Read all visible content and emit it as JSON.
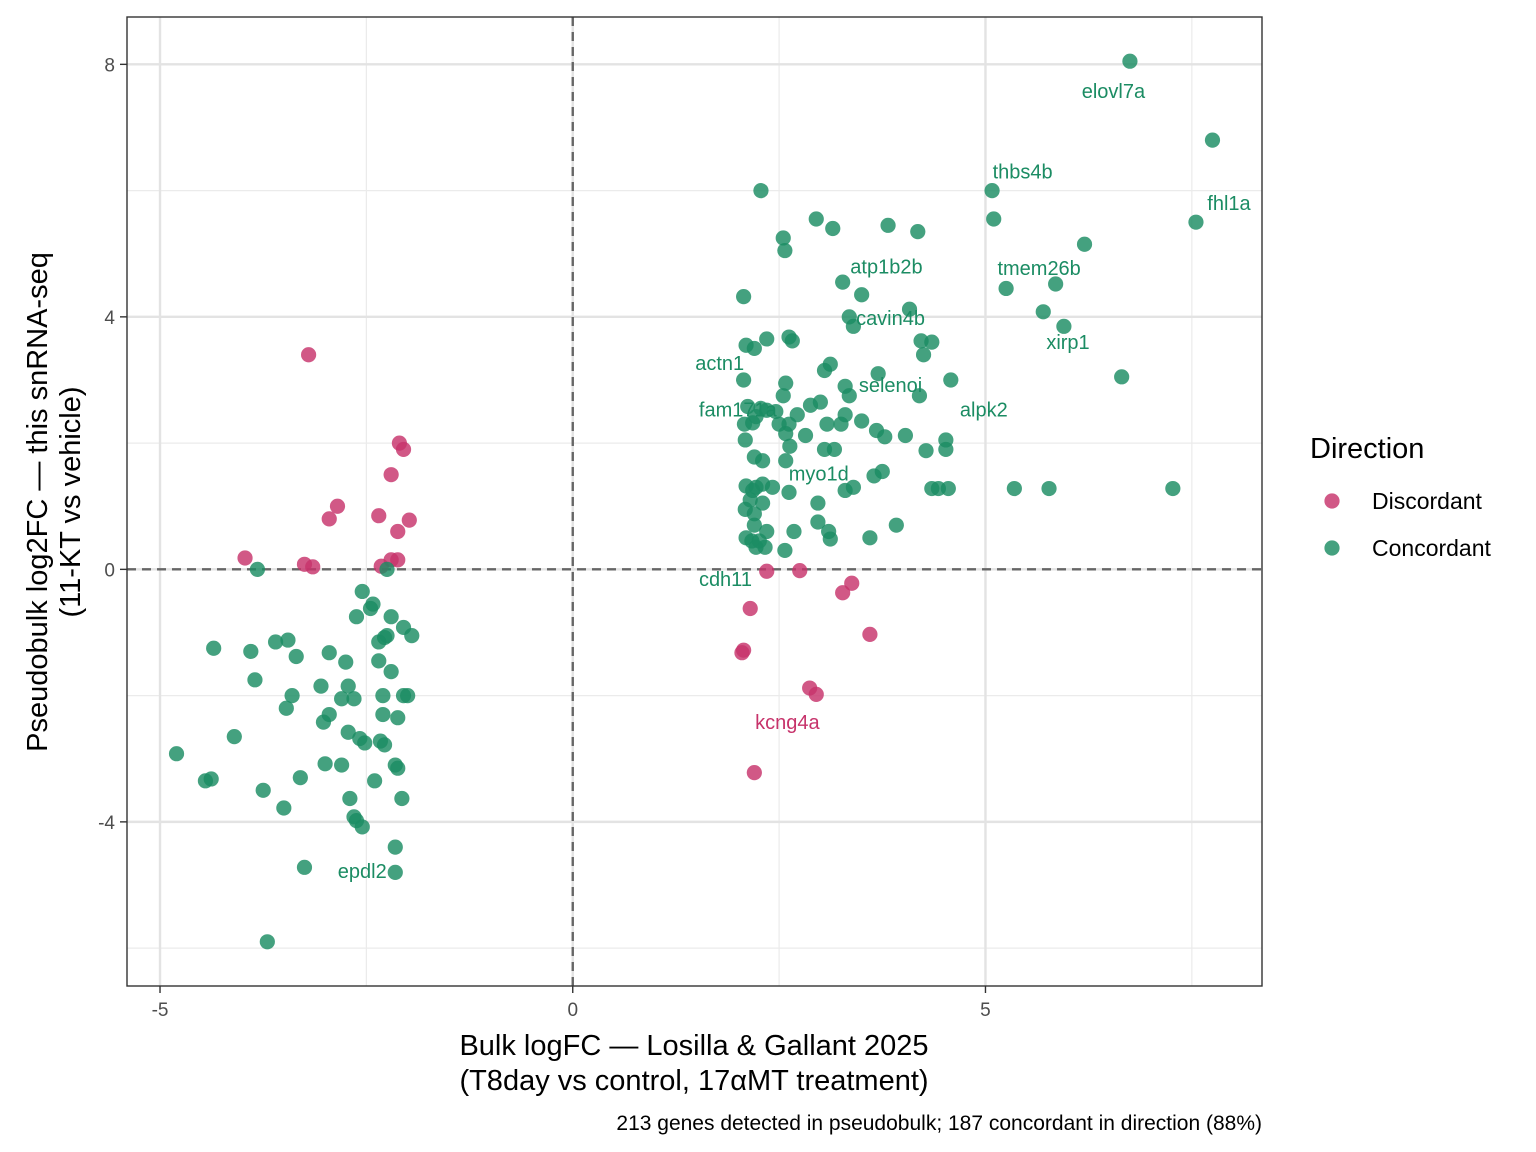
{
  "chart_data": {
    "type": "scatter",
    "title": "",
    "xlabel_lines": [
      "Bulk logFC — Losilla & Gallant 2025",
      "(T8day vs control, 17αMT treatment)"
    ],
    "ylabel_lines": [
      "Pseudobulk log2FC — this snRNA-seq",
      "(11-KT vs vehicle)"
    ],
    "caption": "213 genes detected in pseudobulk; 187 concordant in direction (88%)",
    "xlim": [
      -5.4,
      8.35
    ],
    "ylim": [
      -6.6,
      8.75
    ],
    "x_ticks": [
      -5,
      0,
      5
    ],
    "x_tick_labels": [
      "-5",
      "0",
      "5"
    ],
    "y_ticks": [
      -4,
      0,
      4,
      8
    ],
    "y_tick_labels": [
      "-4",
      "0",
      "4",
      "8"
    ],
    "grid": true,
    "reference_lines": {
      "x": 0,
      "y": 0,
      "style": "dashed"
    },
    "legend": {
      "title": "Direction",
      "placement": "right",
      "entries": [
        {
          "name": "Discordant",
          "color": "#C7336B"
        },
        {
          "name": "Concordant",
          "color": "#1B8C63"
        }
      ]
    },
    "series": [
      {
        "name": "Discordant",
        "color": "#C7336B",
        "points": [
          [
            -3.2,
            3.4
          ],
          [
            -2.1,
            2.0
          ],
          [
            -2.05,
            1.9
          ],
          [
            -2.2,
            1.5
          ],
          [
            -2.85,
            1.0
          ],
          [
            -2.95,
            0.8
          ],
          [
            -2.35,
            0.85
          ],
          [
            -1.98,
            0.78
          ],
          [
            -2.12,
            0.6
          ],
          [
            -3.97,
            0.18
          ],
          [
            -3.25,
            0.08
          ],
          [
            -3.15,
            0.04
          ],
          [
            -2.32,
            0.05
          ],
          [
            -2.2,
            0.15
          ],
          [
            -2.12,
            0.15
          ],
          [
            2.35,
            -0.03
          ],
          [
            2.75,
            -0.02
          ],
          [
            3.38,
            -0.22
          ],
          [
            3.27,
            -0.37
          ],
          [
            2.15,
            -0.62
          ],
          [
            3.6,
            -1.03
          ],
          [
            2.07,
            -1.28
          ],
          [
            2.05,
            -1.32
          ],
          [
            2.87,
            -1.88
          ],
          [
            2.95,
            -1.98
          ],
          [
            2.2,
            -3.22
          ]
        ]
      },
      {
        "name": "Concordant",
        "color": "#1B8C63",
        "points": [
          [
            6.75,
            8.05
          ],
          [
            7.75,
            6.8
          ],
          [
            2.28,
            6.0
          ],
          [
            5.08,
            6.0
          ],
          [
            5.1,
            5.55
          ],
          [
            2.95,
            5.55
          ],
          [
            3.15,
            5.4
          ],
          [
            3.82,
            5.45
          ],
          [
            4.18,
            5.35
          ],
          [
            7.55,
            5.5
          ],
          [
            2.55,
            5.25
          ],
          [
            2.57,
            5.05
          ],
          [
            6.2,
            5.15
          ],
          [
            3.27,
            4.55
          ],
          [
            3.5,
            4.35
          ],
          [
            5.25,
            4.45
          ],
          [
            5.85,
            4.52
          ],
          [
            2.07,
            4.32
          ],
          [
            4.08,
            4.12
          ],
          [
            5.7,
            4.08
          ],
          [
            3.35,
            4.0
          ],
          [
            3.4,
            3.85
          ],
          [
            5.95,
            3.85
          ],
          [
            2.35,
            3.65
          ],
          [
            2.62,
            3.68
          ],
          [
            2.66,
            3.62
          ],
          [
            4.22,
            3.62
          ],
          [
            4.35,
            3.6
          ],
          [
            2.1,
            3.55
          ],
          [
            2.2,
            3.5
          ],
          [
            4.25,
            3.4
          ],
          [
            3.12,
            3.25
          ],
          [
            3.05,
            3.15
          ],
          [
            3.7,
            3.1
          ],
          [
            2.07,
            3.0
          ],
          [
            2.58,
            2.95
          ],
          [
            4.58,
            3.0
          ],
          [
            6.65,
            3.05
          ],
          [
            3.3,
            2.9
          ],
          [
            4.2,
            2.75
          ],
          [
            2.55,
            2.75
          ],
          [
            3.35,
            2.75
          ],
          [
            2.12,
            2.58
          ],
          [
            2.28,
            2.55
          ],
          [
            2.35,
            2.52
          ],
          [
            2.46,
            2.5
          ],
          [
            2.88,
            2.6
          ],
          [
            3.0,
            2.65
          ],
          [
            2.22,
            2.42
          ],
          [
            2.72,
            2.45
          ],
          [
            3.3,
            2.45
          ],
          [
            3.5,
            2.35
          ],
          [
            2.08,
            2.3
          ],
          [
            2.18,
            2.32
          ],
          [
            2.5,
            2.3
          ],
          [
            2.62,
            2.3
          ],
          [
            3.08,
            2.3
          ],
          [
            3.25,
            2.3
          ],
          [
            2.58,
            2.15
          ],
          [
            2.82,
            2.12
          ],
          [
            3.68,
            2.2
          ],
          [
            3.78,
            2.1
          ],
          [
            4.03,
            2.12
          ],
          [
            4.52,
            2.05
          ],
          [
            2.09,
            2.05
          ],
          [
            2.63,
            1.95
          ],
          [
            3.05,
            1.9
          ],
          [
            3.17,
            1.9
          ],
          [
            4.28,
            1.88
          ],
          [
            4.52,
            1.9
          ],
          [
            2.2,
            1.78
          ],
          [
            2.3,
            1.72
          ],
          [
            2.58,
            1.72
          ],
          [
            3.75,
            1.55
          ],
          [
            3.65,
            1.48
          ],
          [
            2.1,
            1.32
          ],
          [
            2.22,
            1.3
          ],
          [
            2.3,
            1.35
          ],
          [
            2.42,
            1.3
          ],
          [
            2.18,
            1.25
          ],
          [
            2.62,
            1.22
          ],
          [
            3.3,
            1.25
          ],
          [
            3.4,
            1.3
          ],
          [
            4.35,
            1.28
          ],
          [
            4.43,
            1.28
          ],
          [
            4.55,
            1.28
          ],
          [
            5.35,
            1.28
          ],
          [
            5.77,
            1.28
          ],
          [
            7.27,
            1.28
          ],
          [
            2.15,
            1.1
          ],
          [
            2.3,
            1.05
          ],
          [
            2.97,
            1.05
          ],
          [
            2.09,
            0.95
          ],
          [
            2.2,
            0.88
          ],
          [
            2.97,
            0.75
          ],
          [
            2.2,
            0.7
          ],
          [
            2.35,
            0.6
          ],
          [
            2.68,
            0.6
          ],
          [
            3.1,
            0.6
          ],
          [
            3.92,
            0.7
          ],
          [
            3.6,
            0.5
          ],
          [
            2.1,
            0.5
          ],
          [
            2.17,
            0.45
          ],
          [
            2.26,
            0.45
          ],
          [
            3.12,
            0.48
          ],
          [
            2.22,
            0.35
          ],
          [
            2.33,
            0.35
          ],
          [
            2.57,
            0.3
          ],
          [
            -3.82,
            0.0
          ],
          [
            -2.25,
            0.0
          ],
          [
            -2.55,
            -0.35
          ],
          [
            -2.42,
            -0.55
          ],
          [
            -2.45,
            -0.62
          ],
          [
            -2.62,
            -0.75
          ],
          [
            -2.2,
            -0.75
          ],
          [
            -2.05,
            -0.92
          ],
          [
            -2.25,
            -1.05
          ],
          [
            -1.95,
            -1.05
          ],
          [
            -2.28,
            -1.08
          ],
          [
            -2.35,
            -1.15
          ],
          [
            -3.45,
            -1.12
          ],
          [
            -3.6,
            -1.15
          ],
          [
            -4.35,
            -1.25
          ],
          [
            -3.9,
            -1.3
          ],
          [
            -2.95,
            -1.32
          ],
          [
            -3.35,
            -1.38
          ],
          [
            -2.35,
            -1.45
          ],
          [
            -2.75,
            -1.47
          ],
          [
            -2.2,
            -1.62
          ],
          [
            -3.85,
            -1.75
          ],
          [
            -2.72,
            -1.85
          ],
          [
            -3.05,
            -1.85
          ],
          [
            -2.05,
            -2.0
          ],
          [
            -2.3,
            -2.0
          ],
          [
            -2.0,
            -2.0
          ],
          [
            -3.4,
            -2.0
          ],
          [
            -2.65,
            -2.05
          ],
          [
            -2.8,
            -2.05
          ],
          [
            -3.47,
            -2.2
          ],
          [
            -2.3,
            -2.3
          ],
          [
            -2.12,
            -2.35
          ],
          [
            -2.95,
            -2.3
          ],
          [
            -3.02,
            -2.42
          ],
          [
            -2.72,
            -2.58
          ],
          [
            -2.58,
            -2.68
          ],
          [
            -2.33,
            -2.72
          ],
          [
            -2.28,
            -2.78
          ],
          [
            -2.52,
            -2.75
          ],
          [
            -4.1,
            -2.65
          ],
          [
            -4.8,
            -2.92
          ],
          [
            -3.0,
            -3.08
          ],
          [
            -2.8,
            -3.1
          ],
          [
            -2.15,
            -3.1
          ],
          [
            -2.12,
            -3.15
          ],
          [
            -4.38,
            -3.32
          ],
          [
            -4.45,
            -3.35
          ],
          [
            -3.3,
            -3.3
          ],
          [
            -2.4,
            -3.35
          ],
          [
            -3.75,
            -3.5
          ],
          [
            -2.7,
            -3.63
          ],
          [
            -2.07,
            -3.63
          ],
          [
            -3.5,
            -3.78
          ],
          [
            -2.65,
            -3.92
          ],
          [
            -2.62,
            -3.98
          ],
          [
            -2.55,
            -4.08
          ],
          [
            -2.15,
            -4.4
          ],
          [
            -3.25,
            -4.72
          ],
          [
            -2.15,
            -4.8
          ],
          [
            -3.7,
            -5.9
          ]
        ]
      }
    ],
    "annotations": [
      {
        "text": "elovl7a",
        "x": 6.55,
        "y": 7.58,
        "series": "Concordant"
      },
      {
        "text": "thbs4b",
        "x": 5.45,
        "y": 6.3,
        "series": "Concordant"
      },
      {
        "text": "fhl1a",
        "x": 7.95,
        "y": 5.8,
        "series": "Concordant"
      },
      {
        "text": "atp1b2b",
        "x": 3.8,
        "y": 4.8,
        "series": "Concordant"
      },
      {
        "text": "tmem26b",
        "x": 5.65,
        "y": 4.77,
        "series": "Concordant"
      },
      {
        "text": "cavin4b",
        "x": 3.85,
        "y": 3.98,
        "series": "Concordant"
      },
      {
        "text": "xirp1",
        "x": 6.0,
        "y": 3.6,
        "series": "Concordant"
      },
      {
        "text": "actn1",
        "x": 1.78,
        "y": 3.27,
        "series": "Concordant"
      },
      {
        "text": "selenoi",
        "x": 3.85,
        "y": 2.92,
        "series": "Concordant"
      },
      {
        "text": "fam171a",
        "x": 2.0,
        "y": 2.53,
        "series": "Concordant"
      },
      {
        "text": "alpk2",
        "x": 4.98,
        "y": 2.53,
        "series": "Concordant"
      },
      {
        "text": "myo1d",
        "x": 2.98,
        "y": 1.52,
        "series": "Concordant"
      },
      {
        "text": "cdh11",
        "x": 1.85,
        "y": -0.15,
        "series": "Concordant"
      },
      {
        "text": "kcng4a",
        "x": 2.6,
        "y": -2.42,
        "series": "Discordant"
      },
      {
        "text": "epdl2",
        "x": -2.55,
        "y": -4.78,
        "series": "Concordant"
      }
    ]
  }
}
